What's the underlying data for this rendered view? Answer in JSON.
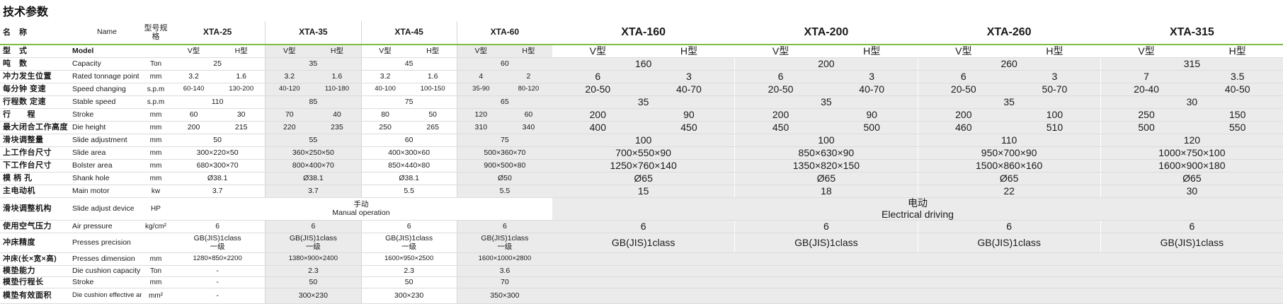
{
  "title": "技术参数",
  "header": {
    "cn": "名　称",
    "en": "Name",
    "unit": "型号规格",
    "models_left": [
      "XTA-25",
      "XTA-35",
      "XTA-45",
      "XTA-60"
    ],
    "models_right": [
      "XTA-160",
      "XTA-200",
      "XTA-260",
      "XTA-315"
    ]
  },
  "type_row": {
    "cn": "型　式",
    "en": "Model",
    "v": "V型",
    "h": "H型"
  },
  "capacity": {
    "cn": "吨　数",
    "en": "Capacity",
    "unit": "Ton",
    "left": [
      "25",
      "35",
      "45",
      "60"
    ],
    "right": [
      "160",
      "200",
      "260",
      "315"
    ]
  },
  "tonnage_point": {
    "cn": "冲力发生位置",
    "en": "Rated tonnage point",
    "unit": "mm",
    "left": [
      [
        "3.2",
        "1.6"
      ],
      [
        "3.2",
        "1.6"
      ],
      [
        "3.2",
        "1.6"
      ],
      [
        "4",
        "2"
      ]
    ],
    "right": [
      [
        "6",
        "3"
      ],
      [
        "6",
        "3"
      ],
      [
        "6",
        "3"
      ],
      [
        "7",
        "3.5"
      ]
    ]
  },
  "speed_changing": {
    "cn": "每分钟 变速",
    "en": "Speed changing",
    "unit": "s.p.m",
    "left": [
      [
        "60-140",
        "130-200"
      ],
      [
        "40-120",
        "110-180"
      ],
      [
        "40-100",
        "100-150"
      ],
      [
        "35-90",
        "80-120"
      ]
    ],
    "right": [
      [
        "20-50",
        "40-70"
      ],
      [
        "20-50",
        "40-70"
      ],
      [
        "20-50",
        "50-70"
      ],
      [
        "20-40",
        "40-50"
      ]
    ]
  },
  "stable_speed": {
    "cn": "行程数 定速",
    "en": "Stable speed",
    "unit": "s.p.m",
    "left": [
      "110",
      "85",
      "75",
      "65"
    ],
    "right": [
      "35",
      "35",
      "35",
      "30"
    ]
  },
  "stroke": {
    "cn": "行　　程",
    "en": "Stroke",
    "unit": "mm",
    "left": [
      [
        "60",
        "30"
      ],
      [
        "70",
        "40"
      ],
      [
        "80",
        "50"
      ],
      [
        "120",
        "60"
      ]
    ],
    "right": [
      [
        "200",
        "90"
      ],
      [
        "200",
        "90"
      ],
      [
        "200",
        "100"
      ],
      [
        "250",
        "150"
      ]
    ]
  },
  "die_height": {
    "cn": "最大闭合工作高度",
    "en": "Die height",
    "unit": "mm",
    "left": [
      [
        "200",
        "215"
      ],
      [
        "220",
        "235"
      ],
      [
        "250",
        "265"
      ],
      [
        "310",
        "340"
      ]
    ],
    "right": [
      [
        "400",
        "450"
      ],
      [
        "450",
        "500"
      ],
      [
        "460",
        "510"
      ],
      [
        "500",
        "550"
      ]
    ]
  },
  "slide_adjustment": {
    "cn": "滑块调整量",
    "en": "Slide adjustment",
    "unit": "mm",
    "left": [
      "50",
      "55",
      "60",
      "75"
    ],
    "right": [
      "100",
      "100",
      "110",
      "120"
    ]
  },
  "slide_area": {
    "cn": "上工作台尺寸",
    "en": "Slide area",
    "unit": "mm",
    "left": [
      "300×220×50",
      "360×250×50",
      "400×300×60",
      "500×360×70"
    ],
    "right": [
      "700×550×90",
      "850×630×90",
      "950×700×90",
      "1000×750×100"
    ]
  },
  "bolster_area": {
    "cn": "下工作台尺寸",
    "en": "Bolster area",
    "unit": "mm",
    "left": [
      "680×300×70",
      "800×400×70",
      "850×440×80",
      "900×500×80"
    ],
    "right": [
      "1250×760×140",
      "1350×820×150",
      "1500×860×160",
      "1600×900×180"
    ]
  },
  "shank_hole": {
    "cn": "模 柄 孔",
    "en": "Shank hole",
    "unit": "mm",
    "left": [
      "Ø38.1",
      "Ø38.1",
      "Ø38.1",
      "Ø50"
    ],
    "right": [
      "Ø65",
      "Ø65",
      "Ø65",
      "Ø65"
    ]
  },
  "main_motor": {
    "cn": "主电动机",
    "en": "Main motor",
    "unit": "kw",
    "left": [
      "3.7",
      "3.7",
      "5.5",
      "5.5"
    ],
    "right": [
      "15",
      "18",
      "22",
      "30"
    ]
  },
  "slide_adjust_device": {
    "cn": "滑块调整机构",
    "en": "Slide adjust device",
    "unit": "HP",
    "left_cn": "手动",
    "left_en": "Manual operation",
    "right_cn": "电动",
    "right_en": "Electrical driving"
  },
  "air_pressure": {
    "cn": "使用空气压力",
    "en": "Air pressure",
    "unit": "kg/cm²",
    "left": [
      "6",
      "6",
      "6",
      "6"
    ],
    "right": [
      "6",
      "6",
      "6",
      "6"
    ]
  },
  "precision": {
    "cn": "冲床精度",
    "en": "Presses precision",
    "left_a": "GB(JIS)1class",
    "left_b": "一级",
    "right_a": "GB(JIS)1class"
  },
  "dimension": {
    "cn": "冲床(长×宽×高)",
    "en": "Presses dimension",
    "unit": "mm",
    "left": [
      "1280×850×2200",
      "1380×900×2400",
      "1600×950×2500",
      "1600×1000×2800"
    ]
  },
  "cushion_capacity": {
    "cn": "模垫能力",
    "en": "Die cushion capacity",
    "unit": "Ton",
    "left": [
      "-",
      "2.3",
      "2.3",
      "3.6"
    ]
  },
  "cushion_stroke": {
    "cn": "模垫行程长",
    "en": "Stroke",
    "unit": "mm",
    "left": [
      "-",
      "50",
      "50",
      "70"
    ]
  },
  "cushion_area": {
    "cn": "模垫有效面积",
    "en": "Die cushion effective area",
    "unit": "mm²",
    "left": [
      "-",
      "300×230",
      "300×230",
      "350×300"
    ]
  }
}
